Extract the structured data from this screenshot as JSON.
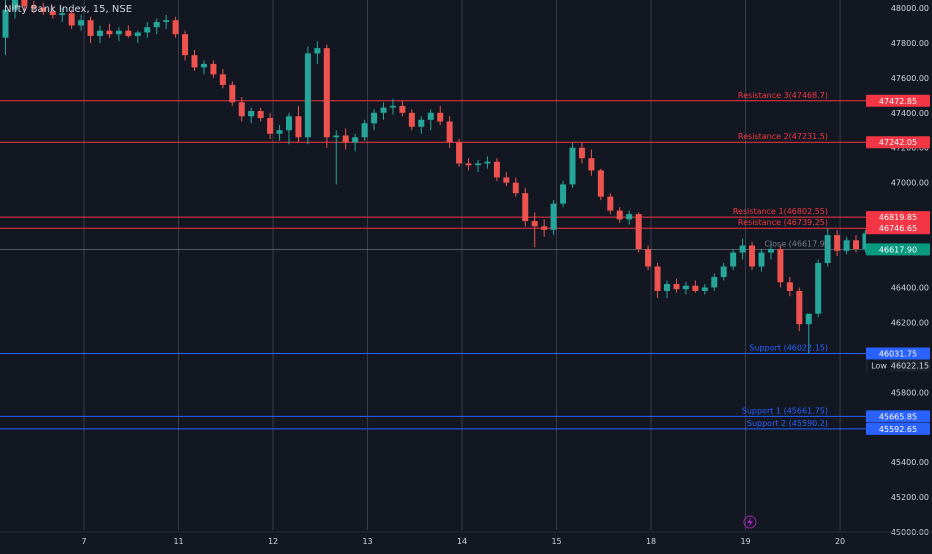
{
  "header": {
    "title": "Nifty Bank Index, 15, NSE"
  },
  "colors": {
    "background": "#131722",
    "up": "#26a69a",
    "down": "#ef5350",
    "grid": "#2a2e39",
    "resistance": "#f23645",
    "support": "#2962ff",
    "close": "#4caf50",
    "axis_text": "#d1d4dc"
  },
  "icons": {
    "bottom_bolt": "lightning-icon"
  },
  "chart_data": {
    "type": "candlestick",
    "title": "Nifty Bank Index, 15, NSE",
    "xlabel": "",
    "ylabel": "",
    "ylim": [
      45000,
      48050
    ],
    "y_ticks": [
      "48000.00",
      "47800.00",
      "47600.00",
      "47400.00",
      "47200.00",
      "47000.00",
      "46800.00",
      "46600.00",
      "46400.00",
      "46200.00",
      "46000.00",
      "45800.00",
      "45600.00",
      "45400.00",
      "45200.00",
      "45000.00"
    ],
    "x_ticks": [
      {
        "label": "7",
        "bar": 9
      },
      {
        "label": "11",
        "bar": 19
      },
      {
        "label": "12",
        "bar": 29
      },
      {
        "label": "13",
        "bar": 39
      },
      {
        "label": "14",
        "bar": 49
      },
      {
        "label": "15",
        "bar": 59
      },
      {
        "label": "18",
        "bar": 69
      },
      {
        "label": "19",
        "bar": 79
      },
      {
        "label": "20",
        "bar": 89
      }
    ],
    "candles": [
      {
        "o": 47830,
        "h": 48100,
        "l": 47730,
        "c": 47990
      },
      {
        "o": 47990,
        "h": 48110,
        "l": 47940,
        "c": 48060
      },
      {
        "o": 48060,
        "h": 48090,
        "l": 47980,
        "c": 48010
      },
      {
        "o": 48010,
        "h": 48040,
        "l": 47970,
        "c": 48000
      },
      {
        "o": 48000,
        "h": 48030,
        "l": 47960,
        "c": 47980
      },
      {
        "o": 47980,
        "h": 48010,
        "l": 47940,
        "c": 47960
      },
      {
        "o": 47960,
        "h": 48000,
        "l": 47920,
        "c": 47970
      },
      {
        "o": 47970,
        "h": 47990,
        "l": 47880,
        "c": 47900
      },
      {
        "o": 47900,
        "h": 47960,
        "l": 47870,
        "c": 47930
      },
      {
        "o": 47930,
        "h": 47950,
        "l": 47800,
        "c": 47840
      },
      {
        "o": 47840,
        "h": 47900,
        "l": 47800,
        "c": 47870
      },
      {
        "o": 47870,
        "h": 47910,
        "l": 47830,
        "c": 47850
      },
      {
        "o": 47850,
        "h": 47890,
        "l": 47810,
        "c": 47870
      },
      {
        "o": 47870,
        "h": 47900,
        "l": 47830,
        "c": 47840
      },
      {
        "o": 47840,
        "h": 47870,
        "l": 47800,
        "c": 47860
      },
      {
        "o": 47860,
        "h": 47920,
        "l": 47830,
        "c": 47890
      },
      {
        "o": 47890,
        "h": 47940,
        "l": 47850,
        "c": 47920
      },
      {
        "o": 47920,
        "h": 47960,
        "l": 47880,
        "c": 47930
      },
      {
        "o": 47930,
        "h": 47950,
        "l": 47830,
        "c": 47850
      },
      {
        "o": 47850,
        "h": 47870,
        "l": 47700,
        "c": 47730
      },
      {
        "o": 47730,
        "h": 47760,
        "l": 47640,
        "c": 47660
      },
      {
        "o": 47660,
        "h": 47700,
        "l": 47620,
        "c": 47680
      },
      {
        "o": 47680,
        "h": 47700,
        "l": 47600,
        "c": 47620
      },
      {
        "o": 47620,
        "h": 47650,
        "l": 47540,
        "c": 47560
      },
      {
        "o": 47560,
        "h": 47580,
        "l": 47440,
        "c": 47460
      },
      {
        "o": 47460,
        "h": 47490,
        "l": 47350,
        "c": 47380
      },
      {
        "o": 47380,
        "h": 47430,
        "l": 47340,
        "c": 47410
      },
      {
        "o": 47410,
        "h": 47430,
        "l": 47350,
        "c": 47370
      },
      {
        "o": 47370,
        "h": 47400,
        "l": 47250,
        "c": 47280
      },
      {
        "o": 47280,
        "h": 47330,
        "l": 47240,
        "c": 47300
      },
      {
        "o": 47300,
        "h": 47400,
        "l": 47220,
        "c": 47380
      },
      {
        "o": 47380,
        "h": 47440,
        "l": 47230,
        "c": 47260
      },
      {
        "o": 47260,
        "h": 47780,
        "l": 47220,
        "c": 47740
      },
      {
        "o": 47740,
        "h": 47810,
        "l": 47680,
        "c": 47770
      },
      {
        "o": 47770,
        "h": 47790,
        "l": 47200,
        "c": 47260
      },
      {
        "o": 47260,
        "h": 47300,
        "l": 46990,
        "c": 47270
      },
      {
        "o": 47270,
        "h": 47310,
        "l": 47190,
        "c": 47230
      },
      {
        "o": 47230,
        "h": 47280,
        "l": 47180,
        "c": 47260
      },
      {
        "o": 47260,
        "h": 47360,
        "l": 47240,
        "c": 47340
      },
      {
        "o": 47340,
        "h": 47420,
        "l": 47300,
        "c": 47400
      },
      {
        "o": 47400,
        "h": 47460,
        "l": 47360,
        "c": 47430
      },
      {
        "o": 47430,
        "h": 47480,
        "l": 47390,
        "c": 47440
      },
      {
        "o": 47440,
        "h": 47470,
        "l": 47380,
        "c": 47400
      },
      {
        "o": 47400,
        "h": 47420,
        "l": 47300,
        "c": 47320
      },
      {
        "o": 47320,
        "h": 47380,
        "l": 47280,
        "c": 47360
      },
      {
        "o": 47360,
        "h": 47420,
        "l": 47300,
        "c": 47400
      },
      {
        "o": 47400,
        "h": 47440,
        "l": 47330,
        "c": 47350
      },
      {
        "o": 47350,
        "h": 47380,
        "l": 47200,
        "c": 47230
      },
      {
        "o": 47230,
        "h": 47250,
        "l": 47090,
        "c": 47110
      },
      {
        "o": 47110,
        "h": 47140,
        "l": 47070,
        "c": 47100
      },
      {
        "o": 47100,
        "h": 47130,
        "l": 47060,
        "c": 47110
      },
      {
        "o": 47110,
        "h": 47150,
        "l": 47080,
        "c": 47120
      },
      {
        "o": 47120,
        "h": 47140,
        "l": 47010,
        "c": 47030
      },
      {
        "o": 47030,
        "h": 47060,
        "l": 46980,
        "c": 47000
      },
      {
        "o": 47000,
        "h": 47030,
        "l": 46920,
        "c": 46940
      },
      {
        "o": 46940,
        "h": 46970,
        "l": 46750,
        "c": 46780
      },
      {
        "o": 46780,
        "h": 46830,
        "l": 46630,
        "c": 46750
      },
      {
        "o": 46750,
        "h": 46790,
        "l": 46690,
        "c": 46730
      },
      {
        "o": 46730,
        "h": 46900,
        "l": 46700,
        "c": 46880
      },
      {
        "o": 46880,
        "h": 47010,
        "l": 46860,
        "c": 46990
      },
      {
        "o": 46990,
        "h": 47230,
        "l": 46970,
        "c": 47200
      },
      {
        "o": 47200,
        "h": 47230,
        "l": 47110,
        "c": 47140
      },
      {
        "o": 47140,
        "h": 47190,
        "l": 47040,
        "c": 47070
      },
      {
        "o": 47070,
        "h": 47080,
        "l": 46900,
        "c": 46920
      },
      {
        "o": 46920,
        "h": 46940,
        "l": 46820,
        "c": 46840
      },
      {
        "o": 46840,
        "h": 46860,
        "l": 46770,
        "c": 46790
      },
      {
        "o": 46790,
        "h": 46840,
        "l": 46760,
        "c": 46820
      },
      {
        "o": 46820,
        "h": 46830,
        "l": 46600,
        "c": 46620
      },
      {
        "o": 46620,
        "h": 46640,
        "l": 46500,
        "c": 46520
      },
      {
        "o": 46520,
        "h": 46540,
        "l": 46340,
        "c": 46380
      },
      {
        "o": 46380,
        "h": 46440,
        "l": 46340,
        "c": 46420
      },
      {
        "o": 46420,
        "h": 46450,
        "l": 46370,
        "c": 46390
      },
      {
        "o": 46390,
        "h": 46430,
        "l": 46360,
        "c": 46410
      },
      {
        "o": 46410,
        "h": 46440,
        "l": 46370,
        "c": 46380
      },
      {
        "o": 46380,
        "h": 46420,
        "l": 46360,
        "c": 46400
      },
      {
        "o": 46400,
        "h": 46480,
        "l": 46380,
        "c": 46460
      },
      {
        "o": 46460,
        "h": 46540,
        "l": 46440,
        "c": 46520
      },
      {
        "o": 46520,
        "h": 46620,
        "l": 46500,
        "c": 46600
      },
      {
        "o": 46600,
        "h": 46680,
        "l": 46560,
        "c": 46640
      },
      {
        "o": 46640,
        "h": 46660,
        "l": 46500,
        "c": 46520
      },
      {
        "o": 46520,
        "h": 46620,
        "l": 46490,
        "c": 46600
      },
      {
        "o": 46600,
        "h": 46660,
        "l": 46560,
        "c": 46620
      },
      {
        "o": 46620,
        "h": 46640,
        "l": 46400,
        "c": 46430
      },
      {
        "o": 46430,
        "h": 46460,
        "l": 46350,
        "c": 46380
      },
      {
        "o": 46380,
        "h": 46400,
        "l": 46150,
        "c": 46190
      },
      {
        "o": 46190,
        "h": 46240,
        "l": 46022,
        "c": 46250
      },
      {
        "o": 46250,
        "h": 46560,
        "l": 46230,
        "c": 46540
      },
      {
        "o": 46540,
        "h": 46740,
        "l": 46520,
        "c": 46700
      },
      {
        "o": 46700,
        "h": 46730,
        "l": 46580,
        "c": 46610
      },
      {
        "o": 46610,
        "h": 46690,
        "l": 46590,
        "c": 46670
      },
      {
        "o": 46670,
        "h": 46700,
        "l": 46600,
        "c": 46620
      },
      {
        "o": 46620,
        "h": 46730,
        "l": 46600,
        "c": 46710
      },
      {
        "o": 46710,
        "h": 46740,
        "l": 46640,
        "c": 46660
      },
      {
        "o": 46660,
        "h": 46680,
        "l": 46580,
        "c": 46618
      }
    ],
    "levels": [
      {
        "name": "Resistance 3",
        "label": "Resistance 3(47468.7)",
        "value": 47468.7,
        "badge": "47472.85",
        "kind": "resistance"
      },
      {
        "name": "Resistance 2",
        "label": "Resistance 2(47231.5)",
        "value": 47231.5,
        "badge": "47242.05",
        "kind": "resistance"
      },
      {
        "name": "Resistance 1",
        "label": "Resistance 1(46802.55)",
        "value": 46802.55,
        "badge": "46819.85",
        "kind": "resistance"
      },
      {
        "name": "Resistance",
        "label": "Resistance (46739.25)",
        "value": 46739.25,
        "badge": "46746.65",
        "kind": "resistance"
      },
      {
        "name": "Close",
        "label": "Close (46617.9)",
        "value": 46617.9,
        "badge": "46617.90",
        "kind": "close"
      },
      {
        "name": "Support",
        "label": "Support (46022.15)",
        "value": 46022.15,
        "badge": "46031.75",
        "kind": "support"
      },
      {
        "name": "Support 1",
        "label": "Support 1 (45661.75)",
        "value": 45661.75,
        "badge": "45665.85",
        "kind": "support"
      },
      {
        "name": "Support 2",
        "label": "Support 2 (45590.2)",
        "value": 45590.2,
        "badge": "45592.65",
        "kind": "support"
      }
    ],
    "low_marker": {
      "label": "Low",
      "value": "46022.15"
    },
    "grid": true
  }
}
